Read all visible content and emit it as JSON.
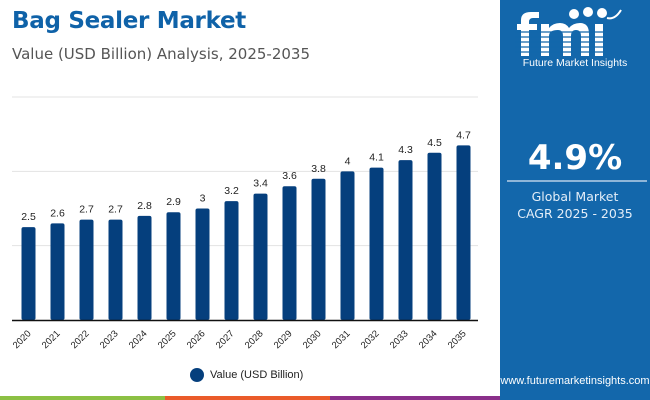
{
  "header": {
    "title": "Bag Sealer Market",
    "subtitle": "Value (USD Billion) Analysis, 2025-2035"
  },
  "sidebar": {
    "logo_text": "Future Market Insights",
    "logo_icon": "fmi-logo-icon",
    "cagr_value": "4.9%",
    "cagr_label_line1": "Global Market",
    "cagr_label_line2": "CAGR 2025 - 2035",
    "website": "www.futuremarketinsights.com"
  },
  "colors": {
    "title": "#0f62a8",
    "bar": "#053f7d",
    "sidebar_bg": "#1367ab",
    "strip": [
      "#8cc044",
      "#ea5b2a",
      "#8a2f8a",
      "#1367ab"
    ]
  },
  "chart_data": {
    "type": "bar",
    "title": "Bag Sealer Market",
    "subtitle": "Value (USD Billion) Analysis, 2025-2035",
    "xlabel": "",
    "ylabel": "",
    "categories": [
      "2020",
      "2021",
      "2022",
      "2023",
      "2024",
      "2025",
      "2026",
      "2027",
      "2028",
      "2029",
      "2030",
      "2031",
      "2032",
      "2033",
      "2034",
      "2035"
    ],
    "series": [
      {
        "name": "Value (USD Billion)",
        "values": [
          2.5,
          2.6,
          2.7,
          2.7,
          2.8,
          2.9,
          3,
          3.2,
          3.4,
          3.6,
          3.8,
          4,
          4.1,
          4.3,
          4.5,
          4.7
        ]
      }
    ],
    "data_labels": [
      "2.5",
      "2.6",
      "2.7",
      "2.7",
      "2.8",
      "2.9",
      "3",
      "3.2",
      "3.4",
      "3.6",
      "3.8",
      "4",
      "4.1",
      "4.3",
      "4.5",
      "4.7"
    ],
    "ylim": [
      0,
      6
    ],
    "gridlines": [
      2,
      4,
      6
    ],
    "grid": true,
    "y_ticks_visible": false,
    "legend": {
      "position": "bottom-center",
      "entries": [
        "Value (USD Billion)"
      ]
    }
  }
}
